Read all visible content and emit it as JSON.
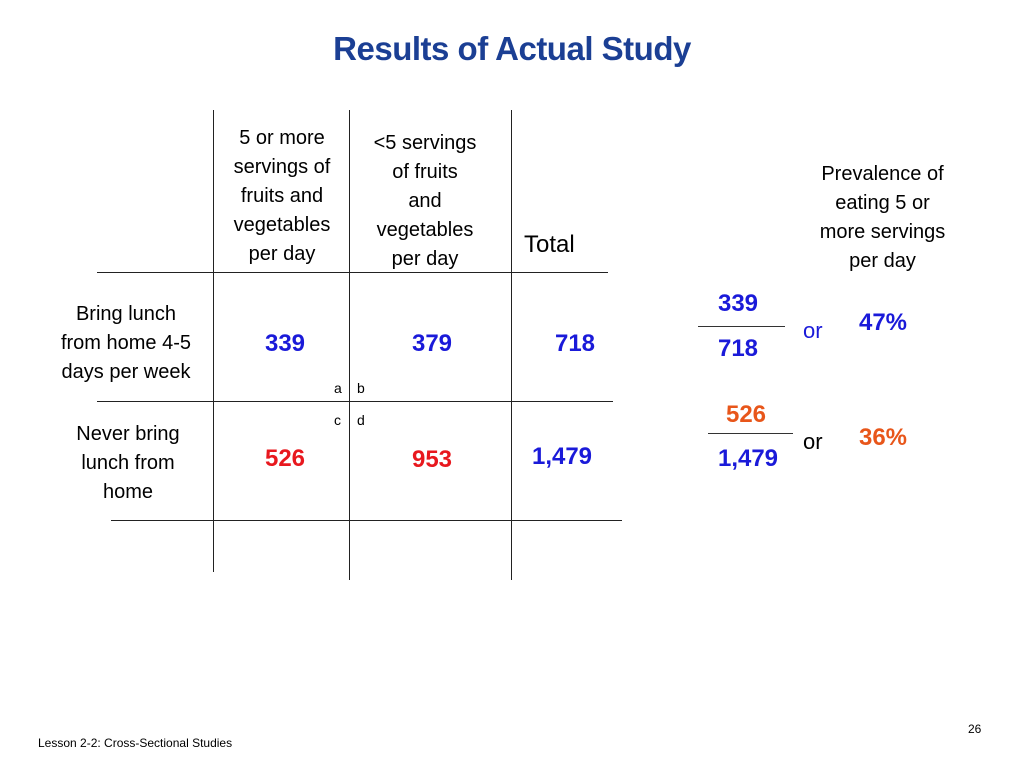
{
  "title": "Results of Actual Study",
  "table": {
    "col_headers": {
      "five_or_more": [
        "5 or more",
        "servings of",
        "fruits and",
        "vegetables",
        "per day"
      ],
      "less_than_five": [
        "<5 servings",
        "of fruits",
        "and",
        "vegetables",
        "per day"
      ],
      "total": "Total"
    },
    "rows": [
      {
        "label": [
          "Bring lunch",
          "from home 4-5",
          "days per week"
        ],
        "five_or_more": "339",
        "less_than_five": "379",
        "total": "718"
      },
      {
        "label": [
          "Never bring",
          "lunch from",
          "home"
        ],
        "five_or_more": "526",
        "less_than_five": "953",
        "total": "1,479"
      }
    ],
    "cell_letters": {
      "a": "a",
      "b": "b",
      "c": "c",
      "d": "d"
    }
  },
  "prevalence": {
    "header": [
      "Prevalence  of",
      "eating 5 or",
      "more servings",
      "per day"
    ],
    "row1": {
      "numerator": "339",
      "denominator": "718",
      "or": "or",
      "percent": "47%"
    },
    "row2": {
      "numerator": "526",
      "denominator": "1,479",
      "or": "or",
      "percent": "36%"
    }
  },
  "footer": {
    "lesson": "Lesson 2-2: Cross-Sectional Studies",
    "page": "26"
  },
  "colors": {
    "title": "#1b3f94",
    "blue": "#1a1ad9",
    "red": "#e8181e",
    "orange": "#e8561a"
  }
}
